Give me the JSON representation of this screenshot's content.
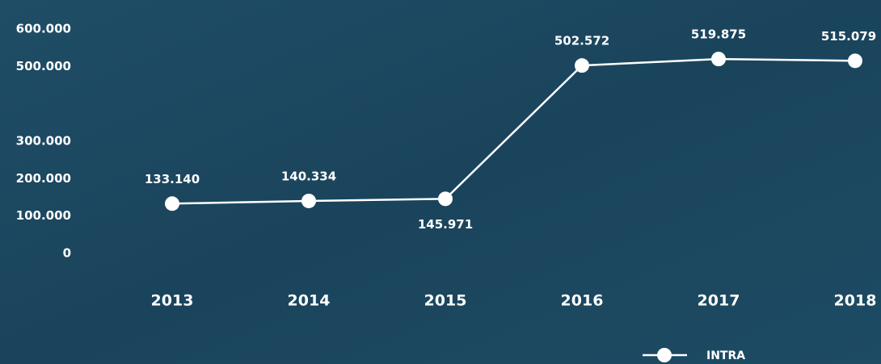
{
  "chart_data": {
    "type": "line",
    "categories": [
      "2013",
      "2014",
      "2015",
      "2016",
      "2017",
      "2018"
    ],
    "series": [
      {
        "name": "INTRA",
        "color": "#ffffff",
        "values": [
          133140,
          140334,
          145971,
          502572,
          519875,
          515079
        ],
        "value_labels": [
          "133.140",
          "140.334",
          "145.971",
          "502.572",
          "519.875",
          "515.079"
        ]
      }
    ],
    "ylim": [
      0,
      600000
    ],
    "yticks": [
      {
        "value": 0,
        "label": "0"
      },
      {
        "value": 100000,
        "label": "100.000"
      },
      {
        "value": 200000,
        "label": "200.000"
      },
      {
        "value": 300000,
        "label": "300.000"
      },
      {
        "value": 500000,
        "label": "500.000"
      },
      {
        "value": 600000,
        "label": "600.000"
      }
    ],
    "grid": false,
    "legend": "bottom-right"
  }
}
